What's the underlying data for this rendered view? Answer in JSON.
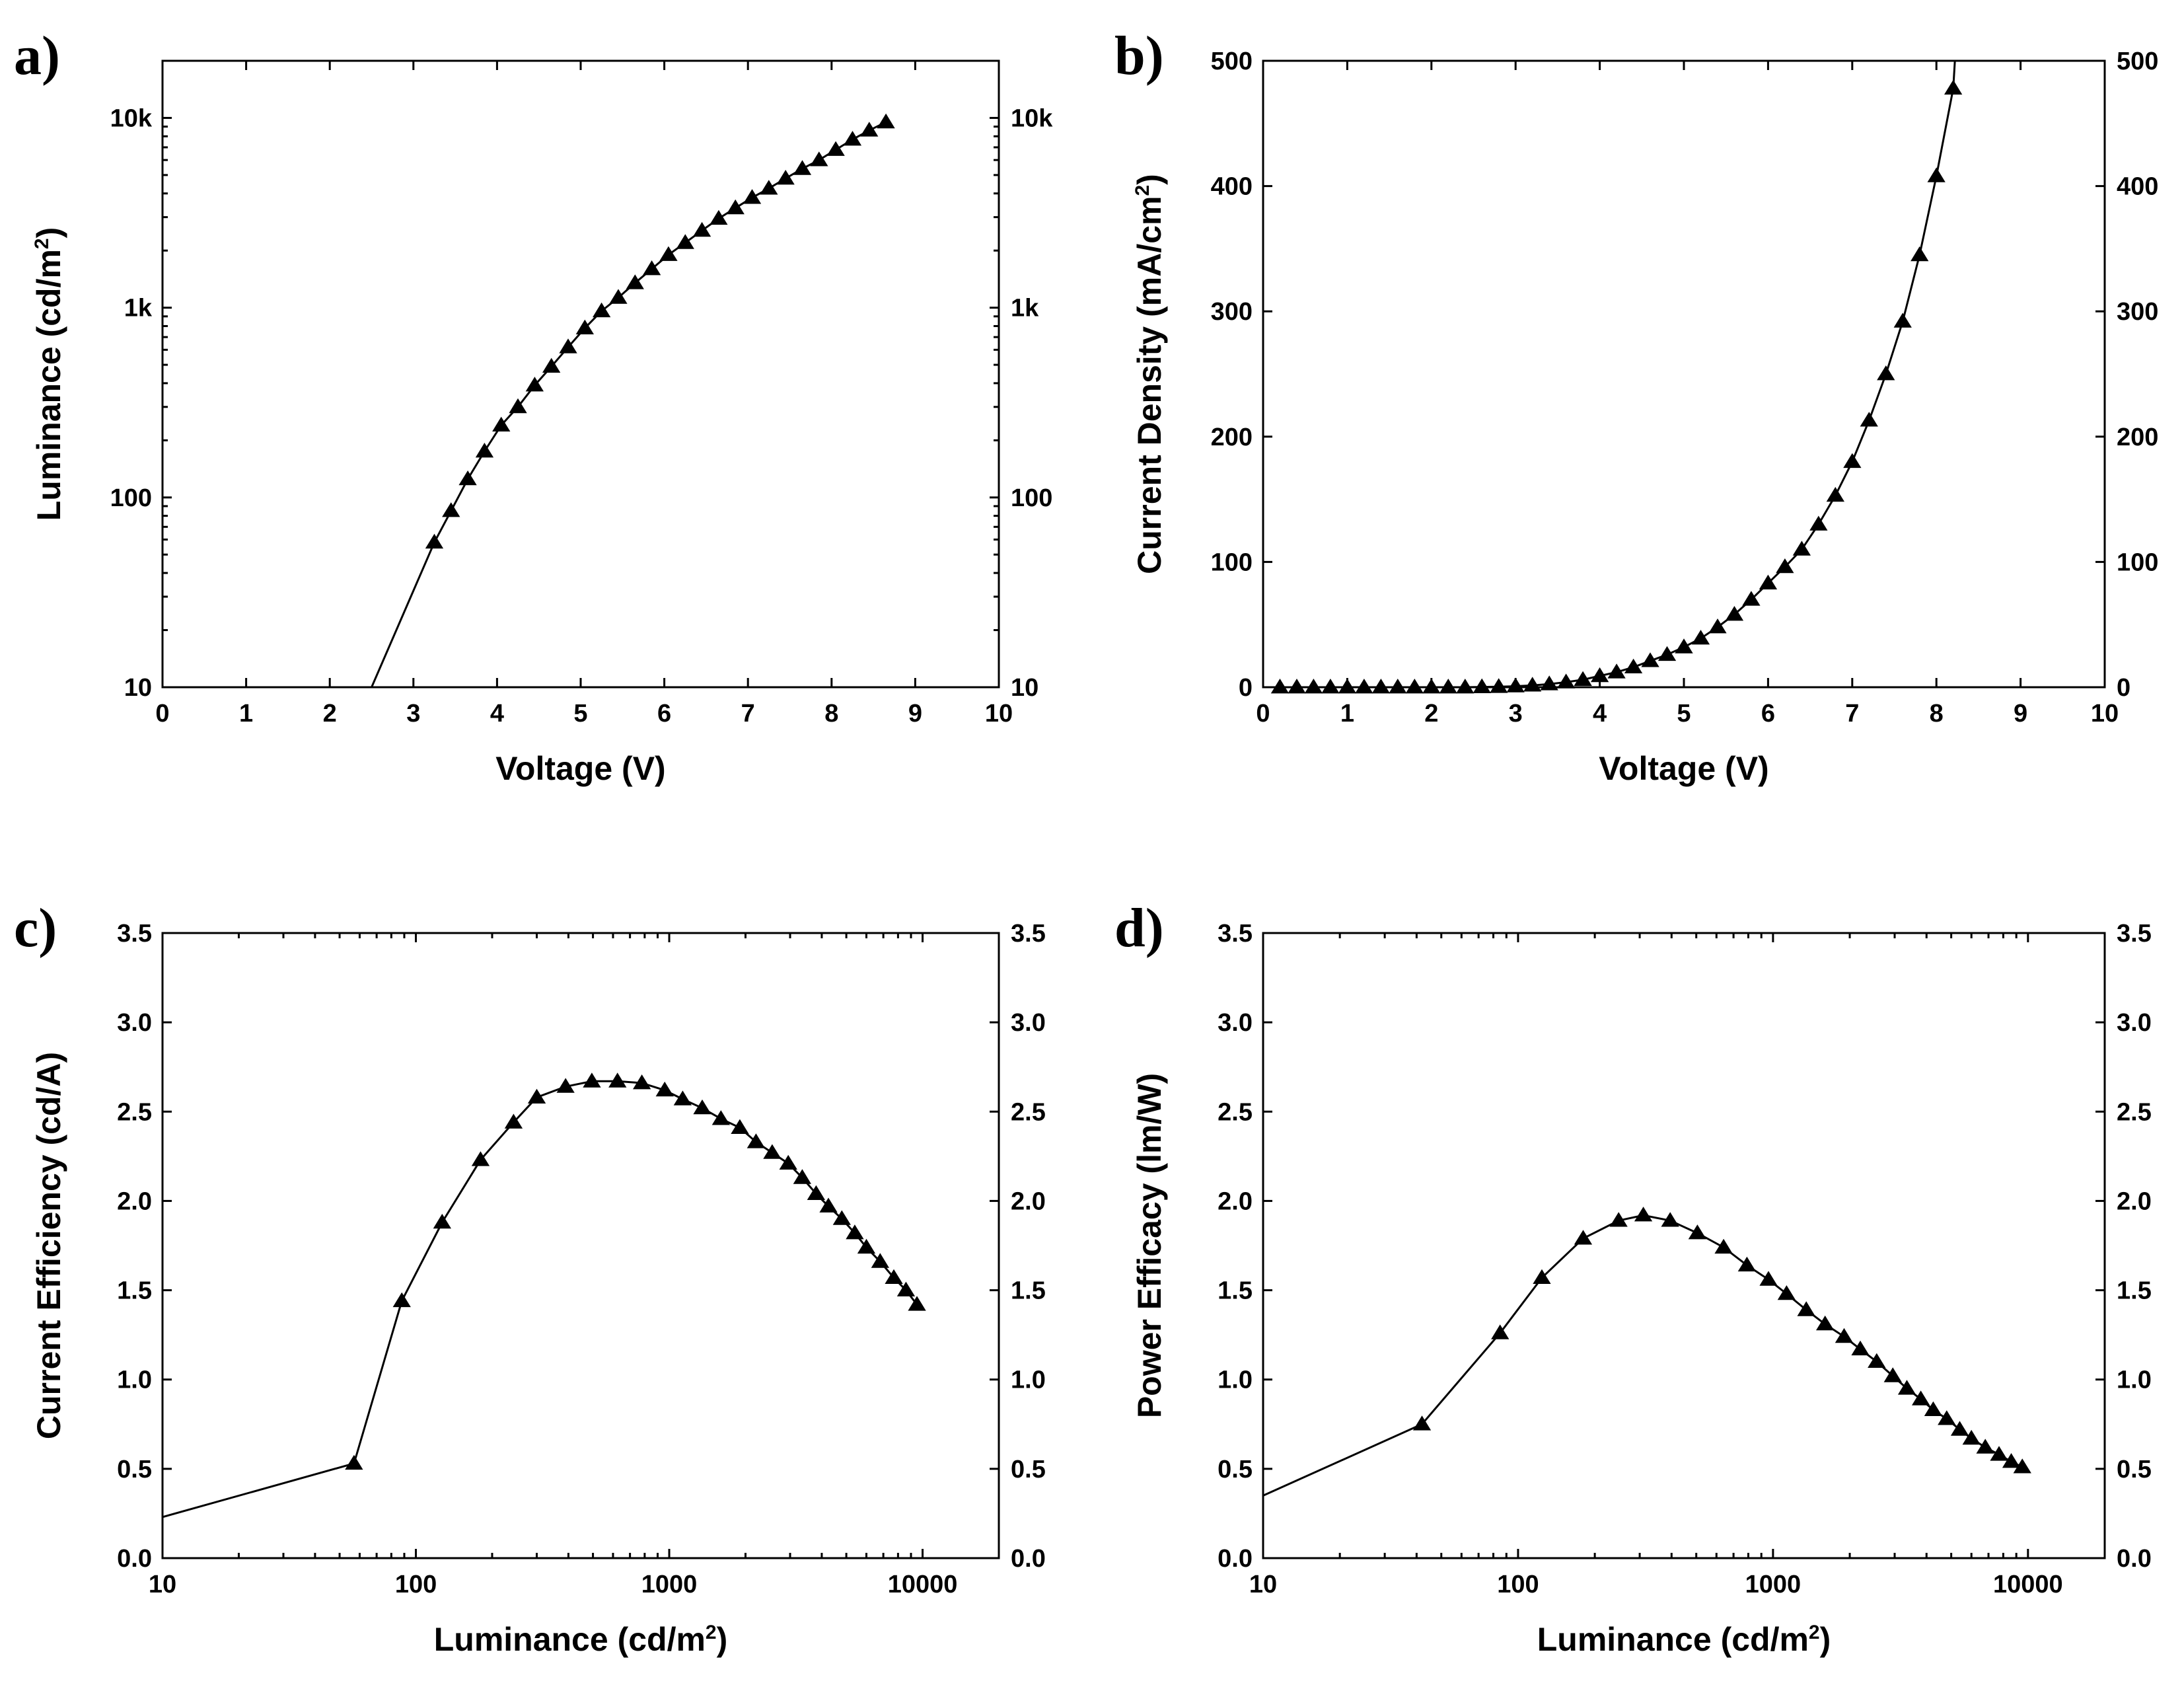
{
  "chart_data": [
    {
      "panel_label": "a)",
      "type": "line",
      "marker": "triangle",
      "xlabel": "Voltage (V)",
      "ylabel": "Luminance (cd/m",
      "ylabel_sup": "2",
      "ylabel_end": ")",
      "xscale": "linear",
      "yscale": "log",
      "xlim": [
        0,
        10
      ],
      "ylim": [
        10,
        20000
      ],
      "xticks": [
        0,
        1,
        2,
        3,
        4,
        5,
        6,
        7,
        8,
        9,
        10
      ],
      "xtick_labels": [
        "0",
        "1",
        "2",
        "3",
        "4",
        "5",
        "6",
        "7",
        "8",
        "9",
        "10"
      ],
      "yticks": [
        10,
        100,
        1000,
        10000
      ],
      "ytick_labels": [
        "10",
        "100",
        "1k",
        "10k"
      ],
      "right_axis_mirrored": true,
      "line_start": [
        2.5,
        10
      ],
      "x": [
        3.25,
        3.45,
        3.65,
        3.85,
        4.05,
        4.25,
        4.45,
        4.65,
        4.85,
        5.05,
        5.25,
        5.45,
        5.65,
        5.85,
        6.05,
        6.25,
        6.45,
        6.65,
        6.85,
        7.05,
        7.25,
        7.45,
        7.65,
        7.85,
        8.05,
        8.25,
        8.45,
        8.65
      ],
      "y": [
        58,
        85,
        125,
        175,
        240,
        300,
        390,
        490,
        620,
        780,
        960,
        1130,
        1350,
        1600,
        1900,
        2200,
        2550,
        2950,
        3350,
        3800,
        4250,
        4800,
        5400,
        6000,
        6800,
        7700,
        8600,
        9500
      ]
    },
    {
      "panel_label": "b)",
      "type": "line",
      "marker": "triangle",
      "xlabel": "Voltage (V)",
      "ylabel": "Current Density (mA/cm",
      "ylabel_sup": "2",
      "ylabel_end": ")",
      "xscale": "linear",
      "yscale": "linear",
      "xlim": [
        0,
        10
      ],
      "ylim": [
        0,
        500
      ],
      "xticks": [
        0,
        1,
        2,
        3,
        4,
        5,
        6,
        7,
        8,
        9,
        10
      ],
      "xtick_labels": [
        "0",
        "1",
        "2",
        "3",
        "4",
        "5",
        "6",
        "7",
        "8",
        "9",
        "10"
      ],
      "yticks": [
        0,
        100,
        200,
        300,
        400,
        500
      ],
      "ytick_labels": [
        "0",
        "100",
        "200",
        "300",
        "400",
        "500"
      ],
      "right_axis_mirrored": true,
      "line_end": [
        8.22,
        500
      ],
      "x": [
        0.2,
        0.4,
        0.6,
        0.8,
        1.0,
        1.2,
        1.4,
        1.6,
        1.8,
        2.0,
        2.2,
        2.4,
        2.6,
        2.8,
        3.0,
        3.2,
        3.4,
        3.6,
        3.8,
        4.0,
        4.2,
        4.4,
        4.6,
        4.8,
        5.0,
        5.2,
        5.4,
        5.6,
        5.8,
        6.0,
        6.2,
        6.4,
        6.6,
        6.8,
        7.0,
        7.2,
        7.4,
        7.6,
        7.8,
        8.0,
        8.2
      ],
      "y": [
        0,
        0,
        0,
        0,
        0,
        0,
        0,
        0,
        0,
        0,
        0,
        0,
        0.2,
        0.4,
        0.8,
        1.5,
        2.5,
        4,
        6,
        9,
        12,
        16,
        21,
        26,
        32,
        39,
        48,
        58,
        70,
        83,
        96,
        110,
        130,
        153,
        180,
        213,
        250,
        292,
        345,
        408,
        478
      ]
    },
    {
      "panel_label": "c)",
      "type": "line",
      "marker": "triangle",
      "xlabel": "Luminance (cd/m",
      "xlabel_sup": "2",
      "xlabel_end": ")",
      "ylabel": "Current Efficiency (cd/A)",
      "xscale": "log",
      "yscale": "linear",
      "xlim": [
        10,
        20000
      ],
      "ylim": [
        0,
        3.5
      ],
      "xticks": [
        10,
        100,
        1000,
        10000
      ],
      "xtick_labels": [
        "10",
        "100",
        "1000",
        "10000"
      ],
      "yticks": [
        0,
        0.5,
        1.0,
        1.5,
        2.0,
        2.5,
        3.0,
        3.5
      ],
      "ytick_labels": [
        "0.0",
        "0.5",
        "1.0",
        "1.5",
        "2.0",
        "2.5",
        "3.0",
        "3.5"
      ],
      "right_axis_mirrored": true,
      "line_start": [
        10,
        0.23
      ],
      "x": [
        57,
        88,
        127,
        180,
        243,
        300,
        390,
        495,
        625,
        780,
        960,
        1130,
        1350,
        1600,
        1900,
        2200,
        2550,
        2950,
        3350,
        3800,
        4250,
        4800,
        5400,
        6000,
        6800,
        7700,
        8600,
        9500
      ],
      "y": [
        0.53,
        1.44,
        1.88,
        2.23,
        2.44,
        2.58,
        2.64,
        2.67,
        2.67,
        2.66,
        2.62,
        2.57,
        2.52,
        2.46,
        2.41,
        2.33,
        2.27,
        2.21,
        2.13,
        2.04,
        1.97,
        1.9,
        1.82,
        1.74,
        1.66,
        1.57,
        1.5,
        1.42
      ]
    },
    {
      "panel_label": "d)",
      "type": "line",
      "marker": "triangle",
      "xlabel": "Luminance (cd/m",
      "xlabel_sup": "2",
      "xlabel_end": ")",
      "ylabel": "Power Efficacy (lm/W)",
      "xscale": "log",
      "yscale": "linear",
      "xlim": [
        10,
        20000
      ],
      "ylim": [
        0,
        3.5
      ],
      "xticks": [
        10,
        100,
        1000,
        10000
      ],
      "xtick_labels": [
        "10",
        "100",
        "1000",
        "10000"
      ],
      "yticks": [
        0,
        0.5,
        1.0,
        1.5,
        2.0,
        2.5,
        3.0,
        3.5
      ],
      "ytick_labels": [
        "0.0",
        "0.5",
        "1.0",
        "1.5",
        "2.0",
        "2.5",
        "3.0",
        "3.5"
      ],
      "right_axis_mirrored": true,
      "line_start": [
        10,
        0.35
      ],
      "x": [
        42,
        85,
        124,
        180,
        248,
        310,
        395,
        505,
        640,
        790,
        960,
        1130,
        1350,
        1600,
        1900,
        2200,
        2550,
        2950,
        3350,
        3800,
        4250,
        4800,
        5400,
        6000,
        6800,
        7700,
        8600,
        9500
      ],
      "y": [
        0.75,
        1.26,
        1.57,
        1.79,
        1.89,
        1.92,
        1.89,
        1.82,
        1.74,
        1.64,
        1.56,
        1.48,
        1.39,
        1.31,
        1.24,
        1.17,
        1.1,
        1.02,
        0.95,
        0.89,
        0.83,
        0.78,
        0.72,
        0.67,
        0.62,
        0.58,
        0.54,
        0.51
      ]
    }
  ]
}
